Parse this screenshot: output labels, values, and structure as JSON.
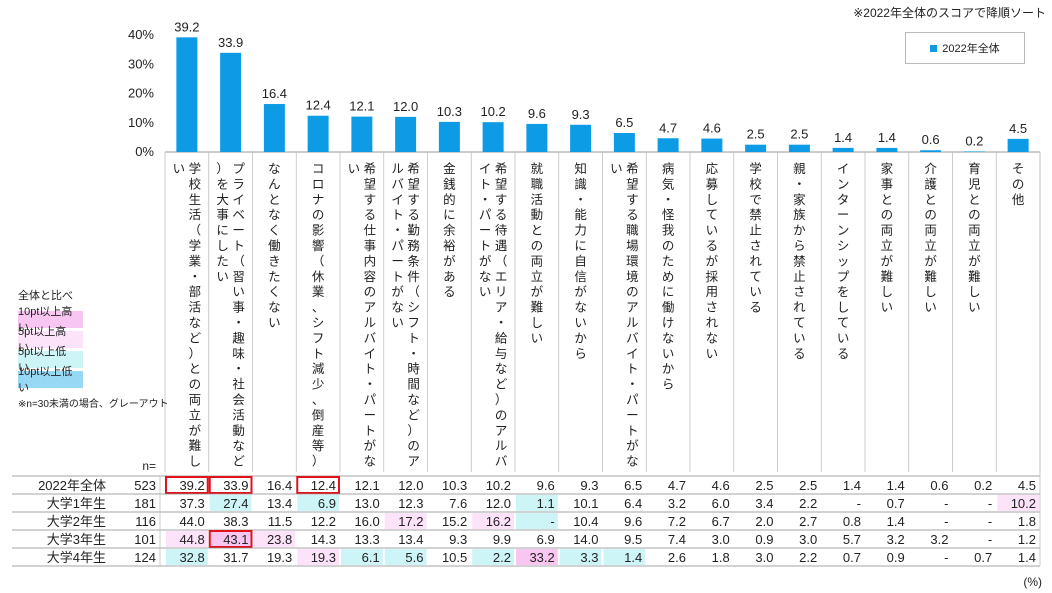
{
  "note": "※2022年全体のスコアで降順ソート",
  "unit": "(%)",
  "n_header": "n=",
  "legend": {
    "series_name": "2022年全体",
    "series_color": "#0e9be6"
  },
  "comparison_legend": {
    "title": "全体と比べ",
    "items": [
      {
        "label": "10pt以上高い",
        "color": "#f9c6f1"
      },
      {
        "label": "5pt以上高い",
        "color": "#fde3fa"
      },
      {
        "label": "5pt以上低い",
        "color": "#cdf4f7"
      },
      {
        "label": "10pt以上低い",
        "color": "#97d9f5"
      }
    ],
    "footnote": "※n=30未満の場合、グレーアウト"
  },
  "chart_data": {
    "type": "bar",
    "ylim": [
      0,
      40
    ],
    "yticks": [
      "0%",
      "10%",
      "20%",
      "30%",
      "40%"
    ],
    "categories": [
      "学校生活（学業・部活など）との両立が難しい",
      "プライベート（習い事・趣味・社会活動など）を大事にしたい",
      "なんとなく働きたくない",
      "コロナの影響（休業、シフト減少、倒産等）",
      "希望する仕事内容のアルバイト・パートがない",
      "希望する勤務条件（シフト・時間など）のアルバイト・パートがない",
      "金銭的に余裕がある",
      "希望する待遇（エリア・給与など）のアルバイト・パートがない",
      "就職活動との両立が難しい",
      "知識・能力に自信がないから",
      "希望する職場環境のアルバイト・パートがない",
      "病気・怪我のために働けないから",
      "応募しているが採用されない",
      "学校で禁止されている",
      "親・家族から禁止されている",
      "インターンシップをしている",
      "家事との両立が難しい",
      "介護との両立が難しい",
      "育児との両立が難しい",
      "その他"
    ],
    "series": [
      {
        "name": "2022年全体",
        "values": [
          39.2,
          33.9,
          16.4,
          12.4,
          12.1,
          12.0,
          10.3,
          10.2,
          9.6,
          9.3,
          6.5,
          4.7,
          4.6,
          2.5,
          2.5,
          1.4,
          1.4,
          0.6,
          0.2,
          4.5
        ]
      }
    ]
  },
  "table": {
    "rows": [
      {
        "label": "2022年全体",
        "n": "523",
        "values": [
          "39.2",
          "33.9",
          "16.4",
          "12.4",
          "12.1",
          "12.0",
          "10.3",
          "10.2",
          "9.6",
          "9.3",
          "6.5",
          "4.7",
          "4.6",
          "2.5",
          "2.5",
          "1.4",
          "1.4",
          "0.6",
          "0.2",
          "4.5"
        ],
        "highlights": [
          "",
          "",
          "",
          "",
          "",
          "",
          "",
          "",
          "",
          "",
          "",
          "",
          "",
          "",
          "",
          "",
          "",
          "",
          "",
          ""
        ],
        "boxed": [
          0,
          1,
          3
        ]
      },
      {
        "label": "大学1年生",
        "n": "181",
        "values": [
          "37.3",
          "27.4",
          "13.4",
          "6.9",
          "13.0",
          "12.3",
          "7.6",
          "12.0",
          "1.1",
          "10.1",
          "6.4",
          "3.2",
          "6.0",
          "3.4",
          "2.2",
          "-",
          "0.7",
          "-",
          "-",
          "10.2"
        ],
        "highlights": [
          "",
          "lo5",
          "",
          "lo5",
          "",
          "",
          "",
          "",
          "lo5",
          "",
          "",
          "",
          "",
          "",
          "",
          "",
          "",
          "",
          "",
          "hi5"
        ],
        "boxed": []
      },
      {
        "label": "大学2年生",
        "n": "116",
        "values": [
          "44.0",
          "38.3",
          "11.5",
          "12.2",
          "16.0",
          "17.2",
          "15.2",
          "16.2",
          "-",
          "10.4",
          "9.6",
          "7.2",
          "6.7",
          "2.0",
          "2.7",
          "0.8",
          "1.4",
          "-",
          "-",
          "1.8"
        ],
        "highlights": [
          "",
          "",
          "",
          "",
          "",
          "hi5",
          "",
          "hi5",
          "lo5",
          "",
          "",
          "",
          "",
          "",
          "",
          "",
          "",
          "",
          "",
          ""
        ],
        "boxed": []
      },
      {
        "label": "大学3年生",
        "n": "101",
        "values": [
          "44.8",
          "43.1",
          "23.8",
          "14.3",
          "13.3",
          "13.4",
          "9.3",
          "9.9",
          "6.9",
          "14.0",
          "9.5",
          "7.4",
          "3.0",
          "0.9",
          "3.0",
          "5.7",
          "3.2",
          "3.2",
          "-",
          "1.2"
        ],
        "highlights": [
          "hi5",
          "hi10",
          "hi5",
          "",
          "",
          "",
          "",
          "",
          "",
          "",
          "",
          "",
          "",
          "",
          "",
          "",
          "",
          "",
          "",
          ""
        ],
        "boxed": [
          1
        ]
      },
      {
        "label": "大学4年生",
        "n": "124",
        "values": [
          "32.8",
          "31.7",
          "19.3",
          "19.3",
          "6.1",
          "5.6",
          "10.5",
          "2.2",
          "33.2",
          "3.3",
          "1.4",
          "2.6",
          "1.8",
          "3.0",
          "2.2",
          "0.7",
          "0.9",
          "-",
          "0.7",
          "1.4"
        ],
        "highlights": [
          "lo5",
          "",
          "",
          "hi5",
          "lo5",
          "lo5",
          "",
          "lo5",
          "hi10",
          "lo5",
          "lo5",
          "",
          "",
          "",
          "",
          "",
          "",
          "",
          "",
          ""
        ],
        "boxed": []
      }
    ]
  }
}
